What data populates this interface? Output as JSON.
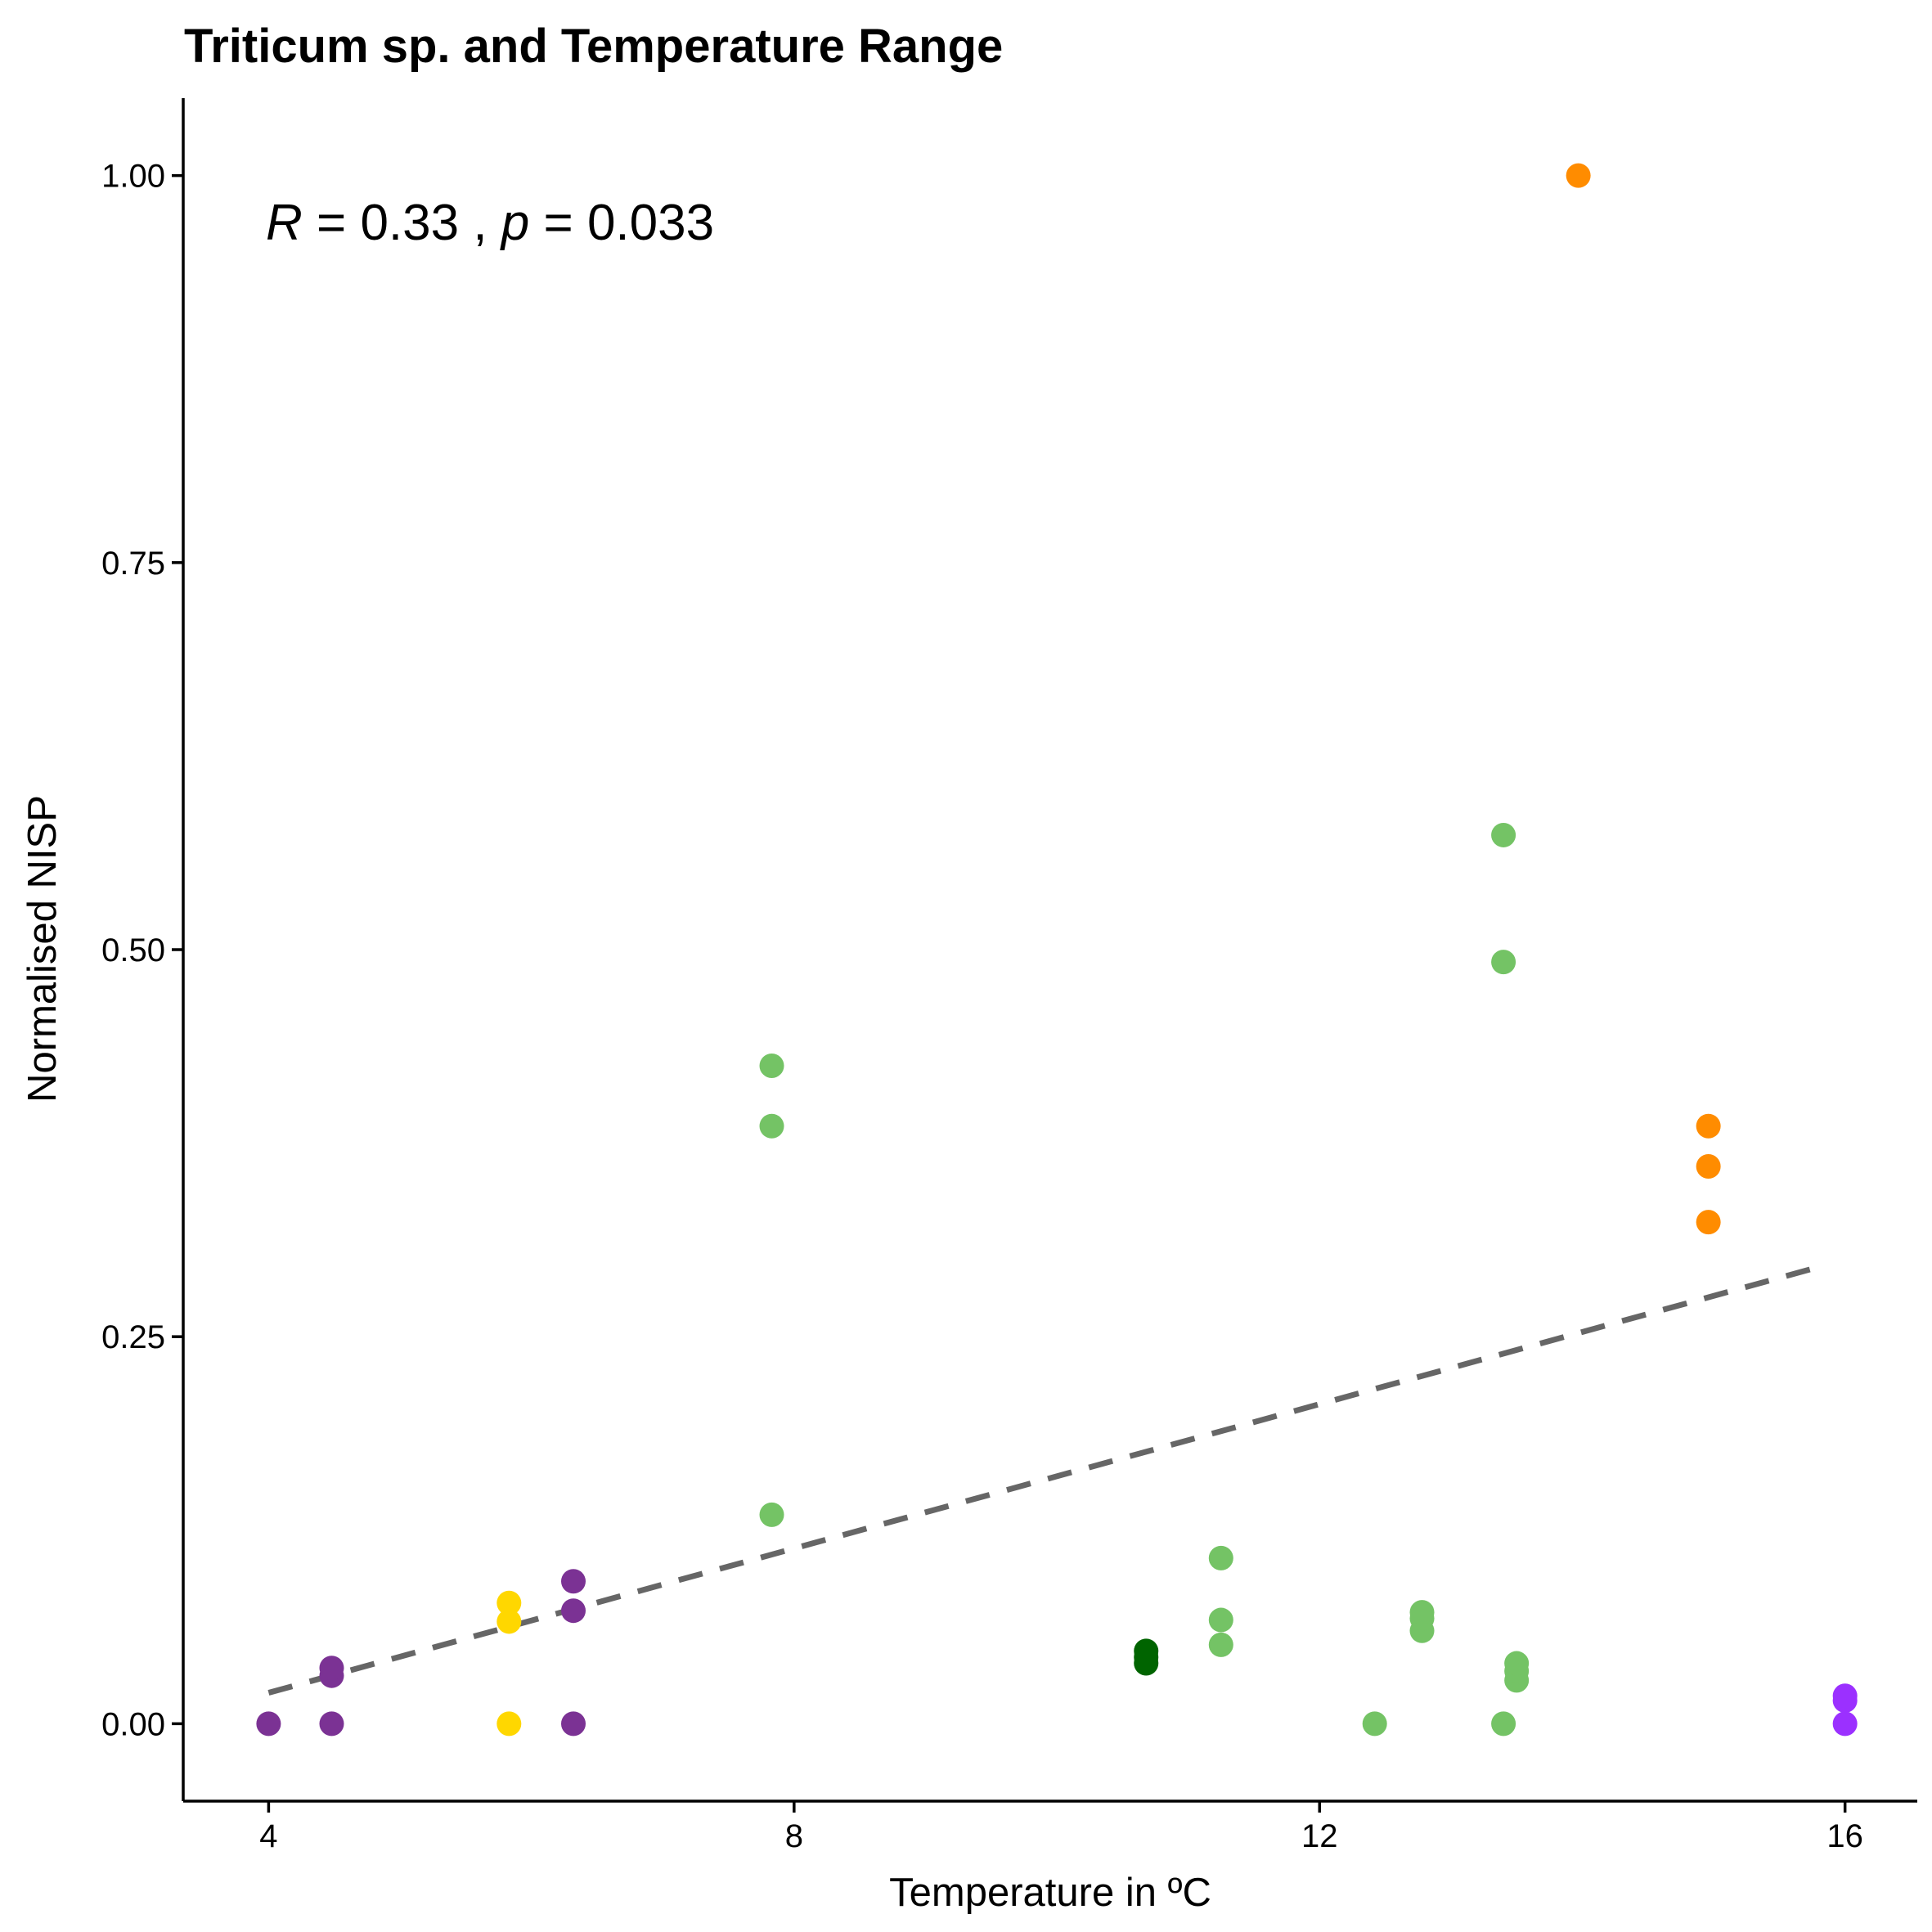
{
  "chart_data": {
    "type": "scatter",
    "title": "Triticum sp. and Temperature Range",
    "xlabel": "Temperature in ºC",
    "ylabel": "Normalised NISP",
    "xlim": [
      3.35,
      16.55
    ],
    "ylim": [
      -0.05,
      1.05
    ],
    "x_ticks": [
      4,
      8,
      12,
      16
    ],
    "x_tick_labels": [
      "4",
      "8",
      "12",
      "16"
    ],
    "y_ticks": [
      0,
      0.25,
      0.5,
      0.75,
      1.0
    ],
    "y_tick_labels": [
      "0.00",
      "0.25",
      "0.50",
      "0.75",
      "1.00"
    ],
    "grid": false,
    "legend": "none",
    "annotation": {
      "r_symbol": "R",
      "r_text": " = 0.33 , ",
      "p_symbol": "p",
      "p_text": " = 0.033"
    },
    "trend_line": {
      "style": "dashed",
      "color": "#666666",
      "x": [
        4.0,
        15.8
      ],
      "y": [
        0.02,
        0.295
      ]
    },
    "series": [
      {
        "color": "#7B3294",
        "points": [
          [
            4.0,
            0.0
          ],
          [
            4.48,
            0.0
          ],
          [
            4.48,
            0.031
          ],
          [
            4.48,
            0.036
          ],
          [
            6.32,
            0.0
          ],
          [
            6.32,
            0.073
          ],
          [
            6.32,
            0.092
          ]
        ]
      },
      {
        "color": "#FFD700",
        "points": [
          [
            5.83,
            0.0
          ],
          [
            5.83,
            0.066
          ],
          [
            5.83,
            0.078
          ]
        ]
      },
      {
        "color": "#74C365",
        "points": [
          [
            7.83,
            0.135
          ],
          [
            7.83,
            0.386
          ],
          [
            7.83,
            0.425
          ],
          [
            11.25,
            0.051
          ],
          [
            11.25,
            0.067
          ],
          [
            11.25,
            0.107
          ],
          [
            12.42,
            0.0
          ],
          [
            12.78,
            0.06
          ],
          [
            12.78,
            0.068
          ],
          [
            12.78,
            0.072
          ],
          [
            13.4,
            0.0
          ],
          [
            13.4,
            0.492
          ],
          [
            13.4,
            0.574
          ],
          [
            13.5,
            0.028
          ],
          [
            13.5,
            0.034
          ],
          [
            13.5,
            0.039
          ]
        ]
      },
      {
        "color": "#006400",
        "points": [
          [
            10.68,
            0.039
          ],
          [
            10.68,
            0.043
          ],
          [
            10.68,
            0.047
          ]
        ]
      },
      {
        "color": "#FF8C00",
        "points": [
          [
            13.97,
            1.0
          ],
          [
            14.96,
            0.324
          ],
          [
            14.96,
            0.36
          ],
          [
            14.96,
            0.386
          ]
        ]
      },
      {
        "color": "#9B30FF",
        "points": [
          [
            16.0,
            0.0
          ],
          [
            16.0,
            0.015
          ],
          [
            16.0,
            0.018
          ]
        ]
      }
    ]
  }
}
